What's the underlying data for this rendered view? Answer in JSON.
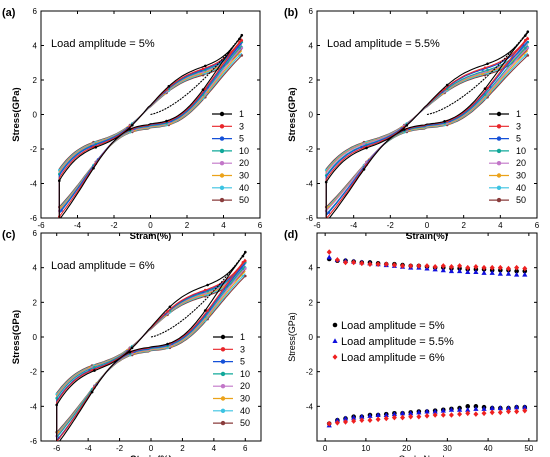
{
  "chart_data": [
    {
      "panel_label": "(a)",
      "type": "line",
      "annotation": "Load amplitude = 5%",
      "xlabel": "Strain(%)",
      "ylabel": "Stress(GPa)",
      "xlim": [
        -6,
        6
      ],
      "ylim": [
        -6,
        6
      ],
      "xticks": [
        -6,
        -4,
        -2,
        0,
        2,
        4,
        6
      ],
      "yticks": [
        -6,
        -4,
        -2,
        0,
        2,
        4,
        6
      ],
      "amplitude": 5,
      "legend": [
        "1",
        "3",
        "5",
        "10",
        "20",
        "30",
        "40",
        "50"
      ],
      "legend_position": "lower-right",
      "peak_stress": [
        4.6,
        4.4,
        4.3,
        4.2,
        4.1,
        4.0,
        3.9,
        3.8
      ],
      "min_stress": [
        -5.0,
        -4.8,
        -4.6,
        -4.5,
        -4.4,
        -4.3,
        -4.2,
        -4.1
      ]
    },
    {
      "panel_label": "(b)",
      "type": "line",
      "annotation": "Load amplitude = 5.5%",
      "xlabel": "Strain(%)",
      "ylabel": "Stress(GPa)",
      "xlim": [
        -6,
        6
      ],
      "ylim": [
        -6,
        6
      ],
      "xticks": [
        -6,
        -4,
        -2,
        0,
        2,
        4,
        6
      ],
      "yticks": [
        -6,
        -4,
        -2,
        0,
        2,
        4,
        6
      ],
      "amplitude": 5.5,
      "legend": [
        "1",
        "3",
        "5",
        "10",
        "20",
        "30",
        "40",
        "50"
      ],
      "legend_position": "lower-right",
      "peak_stress": [
        4.8,
        4.5,
        4.4,
        4.2,
        4.1,
        4.0,
        3.9,
        3.8
      ],
      "min_stress": [
        -5.1,
        -4.9,
        -4.7,
        -4.6,
        -4.4,
        -4.3,
        -4.2,
        -4.1
      ]
    },
    {
      "panel_label": "(c)",
      "type": "line",
      "annotation": "Load amplitude = 6%",
      "xlabel": "Strain(%)",
      "ylabel": "Stress(GPa)",
      "xlim": [
        -7,
        7
      ],
      "ylim": [
        -6,
        6
      ],
      "xticks": [
        -6,
        -4,
        -2,
        0,
        2,
        4,
        6
      ],
      "yticks": [
        -6,
        -4,
        -2,
        0,
        2,
        4,
        6
      ],
      "amplitude": 6,
      "legend": [
        "1",
        "3",
        "5",
        "10",
        "20",
        "30",
        "40",
        "50"
      ],
      "legend_position": "lower-right",
      "peak_stress": [
        4.9,
        4.5,
        4.4,
        4.3,
        4.2,
        4.1,
        4.0,
        3.9
      ],
      "min_stress": [
        -5.1,
        -4.9,
        -4.8,
        -4.6,
        -4.5,
        -4.4,
        -4.3,
        -4.2
      ]
    },
    {
      "panel_label": "(d)",
      "type": "scatter",
      "xlabel": "Cycle Number",
      "ylabel": "Stress(GPa)",
      "xlim": [
        -2,
        52
      ],
      "ylim": [
        -6,
        6
      ],
      "xticks": [
        0,
        10,
        20,
        30,
        40,
        50
      ],
      "yticks": [
        -4,
        -2,
        0,
        2,
        4
      ],
      "legend_position": "center-left",
      "x": [
        1,
        3,
        5,
        7,
        9,
        11,
        13,
        15,
        17,
        19,
        21,
        23,
        25,
        27,
        29,
        31,
        33,
        35,
        37,
        39,
        41,
        43,
        45,
        47,
        49
      ],
      "series": [
        {
          "name": "Load amplitude = 5%",
          "color": "#000000",
          "marker": "circle",
          "max": [
            4.5,
            4.4,
            4.4,
            4.35,
            4.3,
            4.3,
            4.25,
            4.2,
            4.2,
            4.15,
            4.1,
            4.1,
            4.05,
            4.0,
            4.0,
            3.95,
            3.95,
            3.9,
            3.9,
            3.9,
            3.85,
            3.85,
            3.85,
            3.8,
            3.8
          ],
          "min": [
            -5.0,
            -4.8,
            -4.7,
            -4.6,
            -4.6,
            -4.5,
            -4.5,
            -4.45,
            -4.4,
            -4.4,
            -4.35,
            -4.3,
            -4.3,
            -4.25,
            -4.2,
            -4.15,
            -4.1,
            -4.0,
            -4.0,
            -4.05,
            -4.1,
            -4.1,
            -4.1,
            -4.05,
            -4.05
          ]
        },
        {
          "name": "Load amplitude = 5.5%",
          "color": "#1010dd",
          "marker": "triangle",
          "max": [
            4.6,
            4.45,
            4.4,
            4.35,
            4.3,
            4.25,
            4.2,
            4.15,
            4.1,
            4.05,
            4.0,
            4.0,
            3.95,
            3.9,
            3.85,
            3.8,
            3.8,
            3.75,
            3.75,
            3.7,
            3.7,
            3.65,
            3.65,
            3.6,
            3.6
          ],
          "min": [
            -5.1,
            -4.8,
            -4.7,
            -4.65,
            -4.6,
            -4.55,
            -4.5,
            -4.5,
            -4.45,
            -4.4,
            -4.4,
            -4.35,
            -4.3,
            -4.3,
            -4.25,
            -4.2,
            -4.2,
            -4.2,
            -4.15,
            -4.15,
            -4.1,
            -4.1,
            -4.1,
            -4.05,
            -4.05
          ]
        },
        {
          "name": "Load amplitude = 6%",
          "color": "#ee2020",
          "marker": "diamond",
          "max": [
            4.9,
            4.45,
            4.3,
            4.3,
            4.25,
            4.2,
            4.2,
            4.2,
            4.15,
            4.1,
            4.1,
            4.1,
            4.1,
            4.05,
            4.1,
            4.05,
            4.1,
            4.0,
            4.05,
            4.0,
            4.0,
            4.0,
            3.95,
            4.0,
            3.95
          ],
          "min": [
            -5.0,
            -4.95,
            -4.9,
            -4.85,
            -4.8,
            -4.8,
            -4.75,
            -4.7,
            -4.65,
            -4.65,
            -4.6,
            -4.6,
            -4.55,
            -4.5,
            -4.5,
            -4.5,
            -4.45,
            -4.4,
            -4.45,
            -4.4,
            -4.35,
            -4.35,
            -4.3,
            -4.3,
            -4.25
          ]
        }
      ]
    }
  ],
  "colors": [
    "#000000",
    "#e8252a",
    "#1550d8",
    "#11a89a",
    "#c276c8",
    "#eba21a",
    "#3cc3e2",
    "#8a3c3c"
  ]
}
